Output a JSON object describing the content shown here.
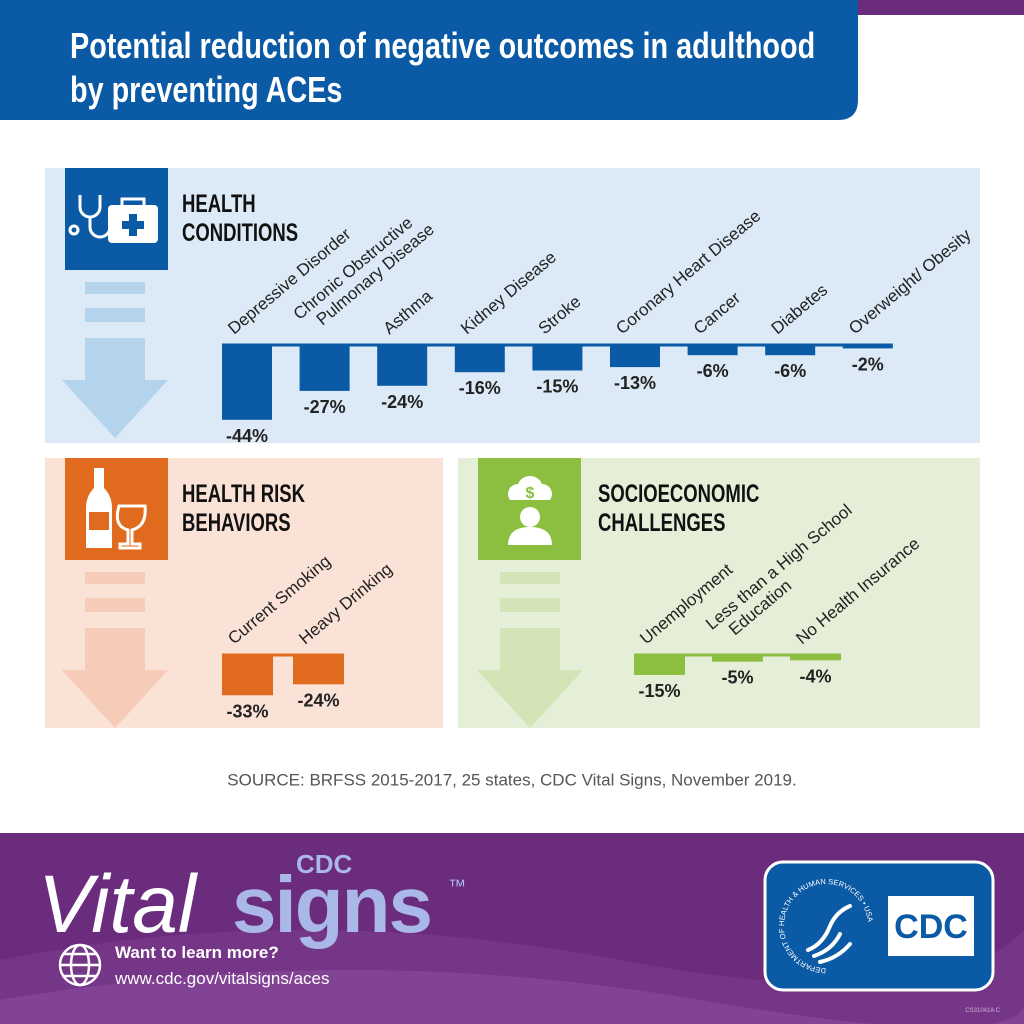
{
  "header": {
    "title": "Potential reduction of negative outcomes in adulthood by preventing ACEs"
  },
  "chart_data": [
    {
      "type": "bar",
      "title": "HEALTH CONDITIONS",
      "color": "#0a5aa5",
      "categories": [
        "Depressive Disorder",
        "Chronic Obstructive Pulmonary Disease",
        "Asthma",
        "Kidney Disease",
        "Stroke",
        "Coronary Heart Disease",
        "Cancer",
        "Diabetes",
        "Overweight/ Obesity"
      ],
      "values": [
        -44,
        -27,
        -24,
        -16,
        -15,
        -13,
        -6,
        -6,
        -2
      ],
      "value_labels": [
        "-44%",
        "-27%",
        "-24%",
        "-16%",
        "-15%",
        "-13%",
        "-6%",
        "-6%",
        "-2%"
      ]
    },
    {
      "type": "bar",
      "title": "HEALTH RISK BEHAVIORS",
      "color": "#e06b1f",
      "categories": [
        "Current Smoking",
        "Heavy Drinking"
      ],
      "values": [
        -33,
        -24
      ],
      "value_labels": [
        "-33%",
        "-24%"
      ]
    },
    {
      "type": "bar",
      "title": "SOCIOECONOMIC CHALLENGES",
      "color": "#8cbf3f",
      "categories": [
        "Unemployment",
        "Less than a High School Education",
        "No Health Insurance"
      ],
      "values": [
        -15,
        -5,
        -4
      ],
      "value_labels": [
        "-15%",
        "-5%",
        "-4%"
      ]
    }
  ],
  "source": "SOURCE: BRFSS 2015-2017, 25 states, CDC Vital Signs, November 2019.",
  "footer": {
    "brand_cdc": "CDC",
    "brand_vital": "Vital",
    "brand_signs": "signs",
    "trademark": "™",
    "prompt": "Want to learn more?",
    "url": "www.cdc.gov/vitalsigns/aces",
    "logo": "CDC",
    "seal": "DEPARTMENT OF HEALTH & HUMAN SERVICES • USA",
    "code": "CS310418-C"
  }
}
